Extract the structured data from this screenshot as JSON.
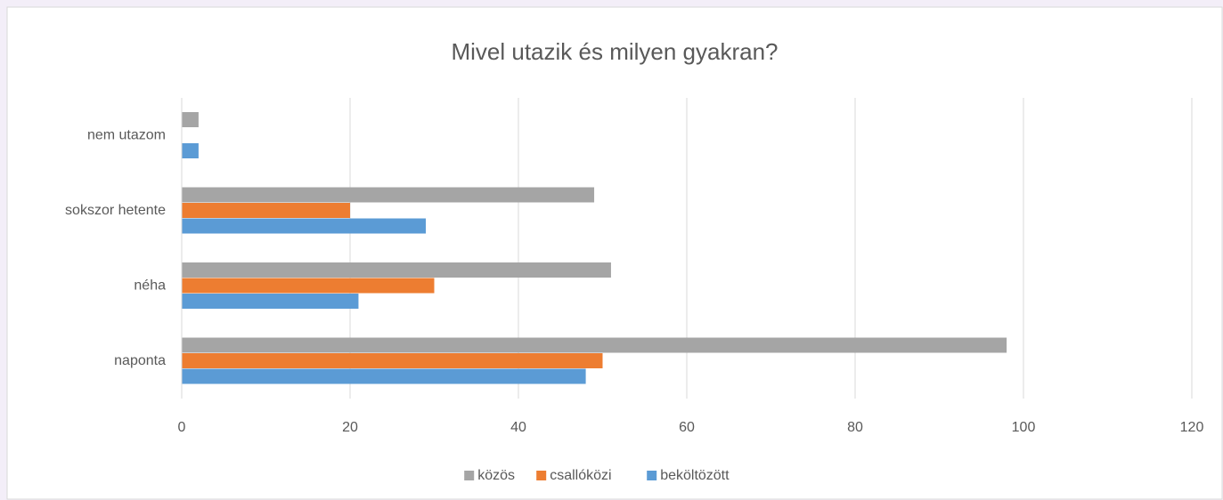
{
  "chart_data": {
    "type": "bar",
    "orientation": "horizontal",
    "title": "Mivel utazik és milyen gyakran?",
    "categories": [
      "naponta",
      "néha",
      "sokszor hetente",
      "nem utazom"
    ],
    "series": [
      {
        "name": "közös",
        "color": "#a5a5a5",
        "values": [
          98,
          51,
          49,
          2
        ]
      },
      {
        "name": "csallóközi",
        "color": "#ed7d31",
        "values": [
          50,
          30,
          20,
          null
        ]
      },
      {
        "name": "beköltözött",
        "color": "#5b9bd5",
        "values": [
          48,
          21,
          29,
          2
        ]
      }
    ],
    "xlim": [
      0,
      120
    ],
    "xticks": [
      0,
      20,
      40,
      60,
      80,
      100,
      120
    ],
    "grid": true,
    "legend": "bottom"
  }
}
